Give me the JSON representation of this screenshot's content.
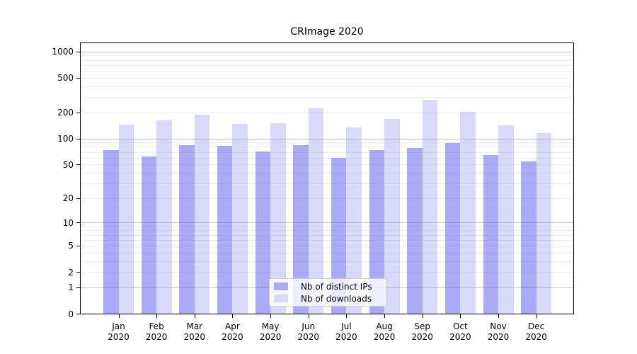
{
  "title": "CRImage 2020",
  "chart_data": {
    "type": "bar",
    "title": "CRImage 2020",
    "categories": [
      "Jan 2020",
      "Feb 2020",
      "Mar 2020",
      "Apr 2020",
      "May 2020",
      "Jun 2020",
      "Jul 2020",
      "Aug 2020",
      "Sep 2020",
      "Oct 2020",
      "Nov 2020",
      "Dec 2020"
    ],
    "series": [
      {
        "name": "Nb of distinct IPs",
        "color": "#aaaaf7",
        "fill": "rgba(100,100,240,0.55)",
        "values": [
          74,
          63,
          85,
          83,
          71,
          84,
          60,
          74,
          78,
          89,
          65,
          55
        ]
      },
      {
        "name": "Nb of downloads",
        "color": "#d9d9f9",
        "fill": "rgba(160,160,240,0.40)",
        "values": [
          146,
          163,
          190,
          150,
          152,
          225,
          135,
          171,
          282,
          205,
          143,
          117
        ]
      }
    ],
    "xlabel": "",
    "ylabel": "",
    "yscale": "log1p",
    "ylim": [
      0,
      1000
    ],
    "yticks": [
      0,
      1,
      2,
      5,
      10,
      20,
      50,
      100,
      200,
      500,
      1000
    ],
    "grid": {
      "minor_values": [
        2,
        3,
        4,
        5,
        6,
        7,
        8,
        9,
        20,
        30,
        40,
        50,
        60,
        70,
        80,
        90,
        200,
        300,
        400,
        500,
        600,
        700,
        800,
        900
      ],
      "major_values": [
        1,
        10,
        100,
        1000
      ],
      "minor_color": "#ececec",
      "major_color": "#c4c4c4"
    },
    "legend_position": "lower center inside",
    "axis_color": "#000000",
    "background_color": "#ffffff"
  }
}
